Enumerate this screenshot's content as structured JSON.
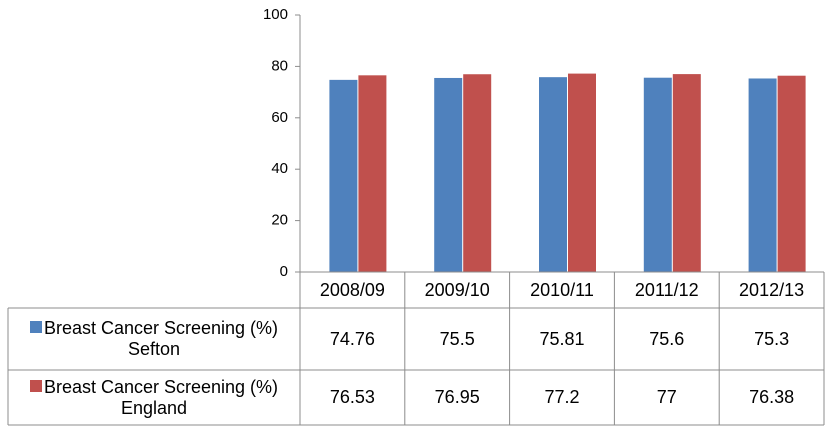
{
  "chart_data": {
    "type": "bar",
    "categories": [
      "2008/09",
      "2009/10",
      "2010/11",
      "2011/12",
      "2012/13"
    ],
    "series": [
      {
        "name": "Breast Cancer Screening (%) Sefton",
        "color": "#4f81bd",
        "values": [
          74.76,
          75.5,
          75.81,
          75.6,
          75.3
        ]
      },
      {
        "name": "Breast Cancer Screening (%) England",
        "color": "#c0504d",
        "values": [
          76.53,
          76.95,
          77.2,
          77,
          76.38
        ]
      }
    ],
    "ylim": [
      0,
      100
    ],
    "yticks": [
      0,
      20,
      40,
      60,
      80,
      100
    ],
    "grid": false
  }
}
